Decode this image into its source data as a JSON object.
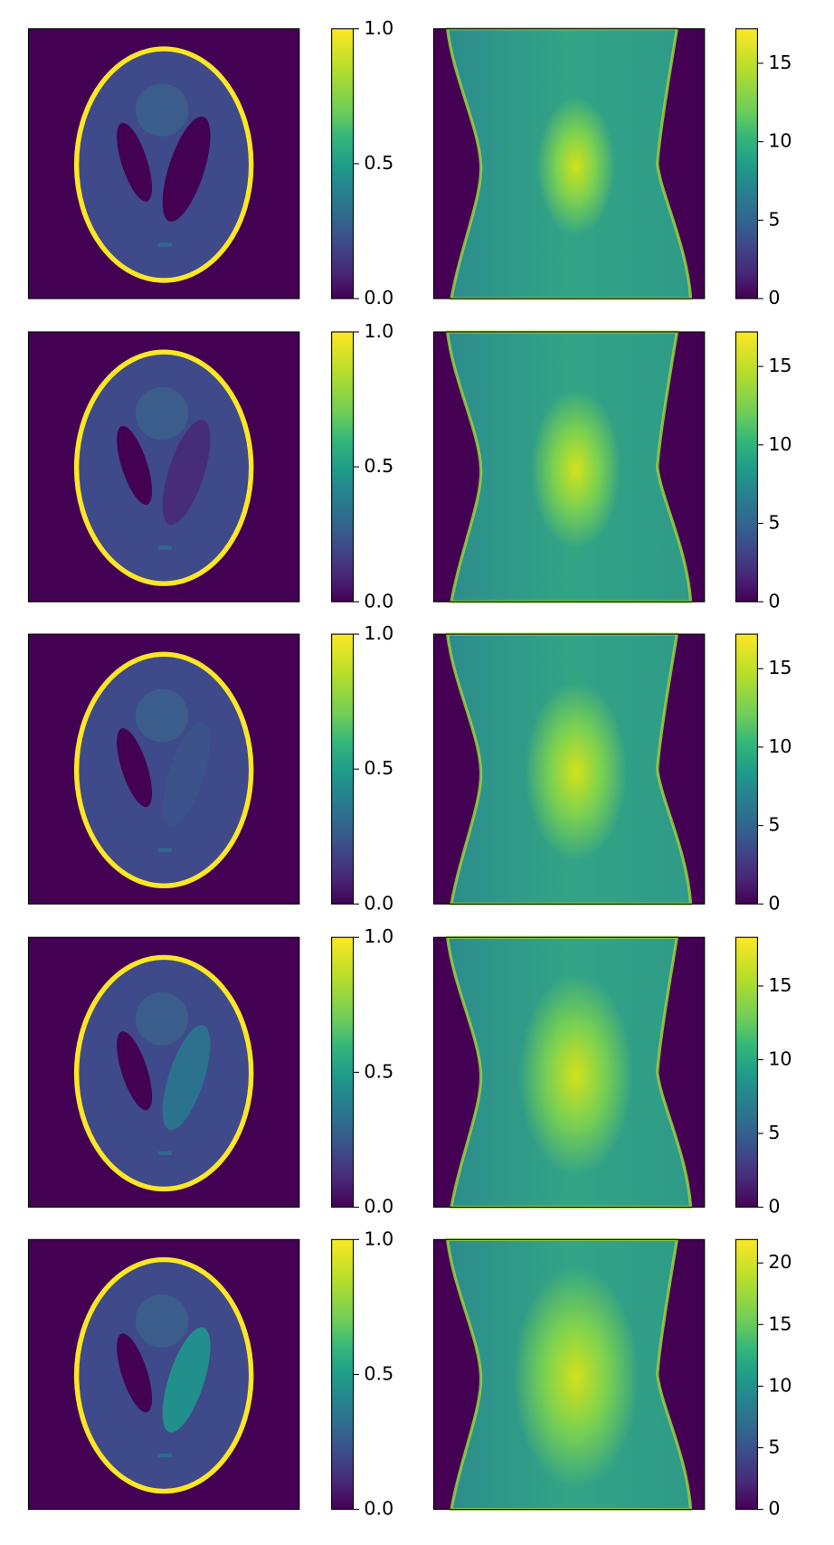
{
  "chart_data": [
    {
      "type": "image",
      "cmap": "viridis",
      "colorbar": {
        "lim": [
          0,
          1
        ],
        "ticks": [
          {
            "value": 0,
            "label": "0.0"
          },
          {
            "value": 0.5,
            "label": "0.5"
          },
          {
            "value": 1,
            "label": "1.0"
          }
        ]
      }
    },
    {
      "type": "image",
      "cmap": "viridis",
      "colorbar": {
        "lim": [
          0,
          17.2
        ],
        "ticks": [
          0,
          5,
          10,
          15
        ]
      }
    },
    {
      "type": "image",
      "cmap": "viridis",
      "colorbar": {
        "lim": [
          0,
          1
        ],
        "ticks": [
          {
            "value": 0,
            "label": "0.0"
          },
          {
            "value": 0.5,
            "label": "0.5"
          },
          {
            "value": 1,
            "label": "1.0"
          }
        ]
      }
    },
    {
      "type": "image",
      "cmap": "viridis",
      "colorbar": {
        "lim": [
          0,
          17.2
        ],
        "ticks": [
          0,
          5,
          10,
          15
        ]
      }
    },
    {
      "type": "image",
      "cmap": "viridis",
      "colorbar": {
        "lim": [
          0,
          1
        ],
        "ticks": [
          {
            "value": 0,
            "label": "0.0"
          },
          {
            "value": 0.5,
            "label": "0.5"
          },
          {
            "value": 1,
            "label": "1.0"
          }
        ]
      }
    },
    {
      "type": "image",
      "cmap": "viridis",
      "colorbar": {
        "lim": [
          0,
          17.2
        ],
        "ticks": [
          0,
          5,
          10,
          15
        ]
      }
    },
    {
      "type": "image",
      "cmap": "viridis",
      "colorbar": {
        "lim": [
          0,
          1
        ],
        "ticks": [
          {
            "value": 0,
            "label": "0.0"
          },
          {
            "value": 0.5,
            "label": "0.5"
          },
          {
            "value": 1,
            "label": "1.0"
          }
        ]
      }
    },
    {
      "type": "image",
      "cmap": "viridis",
      "colorbar": {
        "lim": [
          0,
          18.3
        ],
        "ticks": [
          0,
          5,
          10,
          15
        ]
      }
    },
    {
      "type": "image",
      "cmap": "viridis",
      "colorbar": {
        "lim": [
          0,
          1
        ],
        "ticks": [
          {
            "value": 0,
            "label": "0.0"
          },
          {
            "value": 0.5,
            "label": "0.5"
          },
          {
            "value": 1,
            "label": "1.0"
          }
        ]
      }
    },
    {
      "type": "image",
      "cmap": "viridis",
      "colorbar": {
        "lim": [
          0,
          21.9
        ],
        "ticks": [
          0,
          5,
          10,
          15,
          20
        ]
      }
    }
  ]
}
